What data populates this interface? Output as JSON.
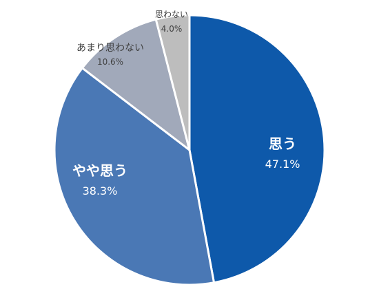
{
  "chart_data": {
    "type": "pie",
    "title": "",
    "slices": [
      {
        "label": "思う",
        "value": 47.1,
        "value_label": "47.1%",
        "color": "#0E59AA"
      },
      {
        "label": "やや思う",
        "value": 38.3,
        "value_label": "38.3%",
        "color": "#4A78B5"
      },
      {
        "label": "あまり思わない",
        "value": 10.6,
        "value_label": "10.6%",
        "color": "#A1A9BA"
      },
      {
        "label": "思わない",
        "value": 4.0,
        "value_label": "4.0%",
        "color": "#BDBDBD"
      }
    ],
    "start": "12 o'clock",
    "direction": "clockwise",
    "legend": "none"
  }
}
